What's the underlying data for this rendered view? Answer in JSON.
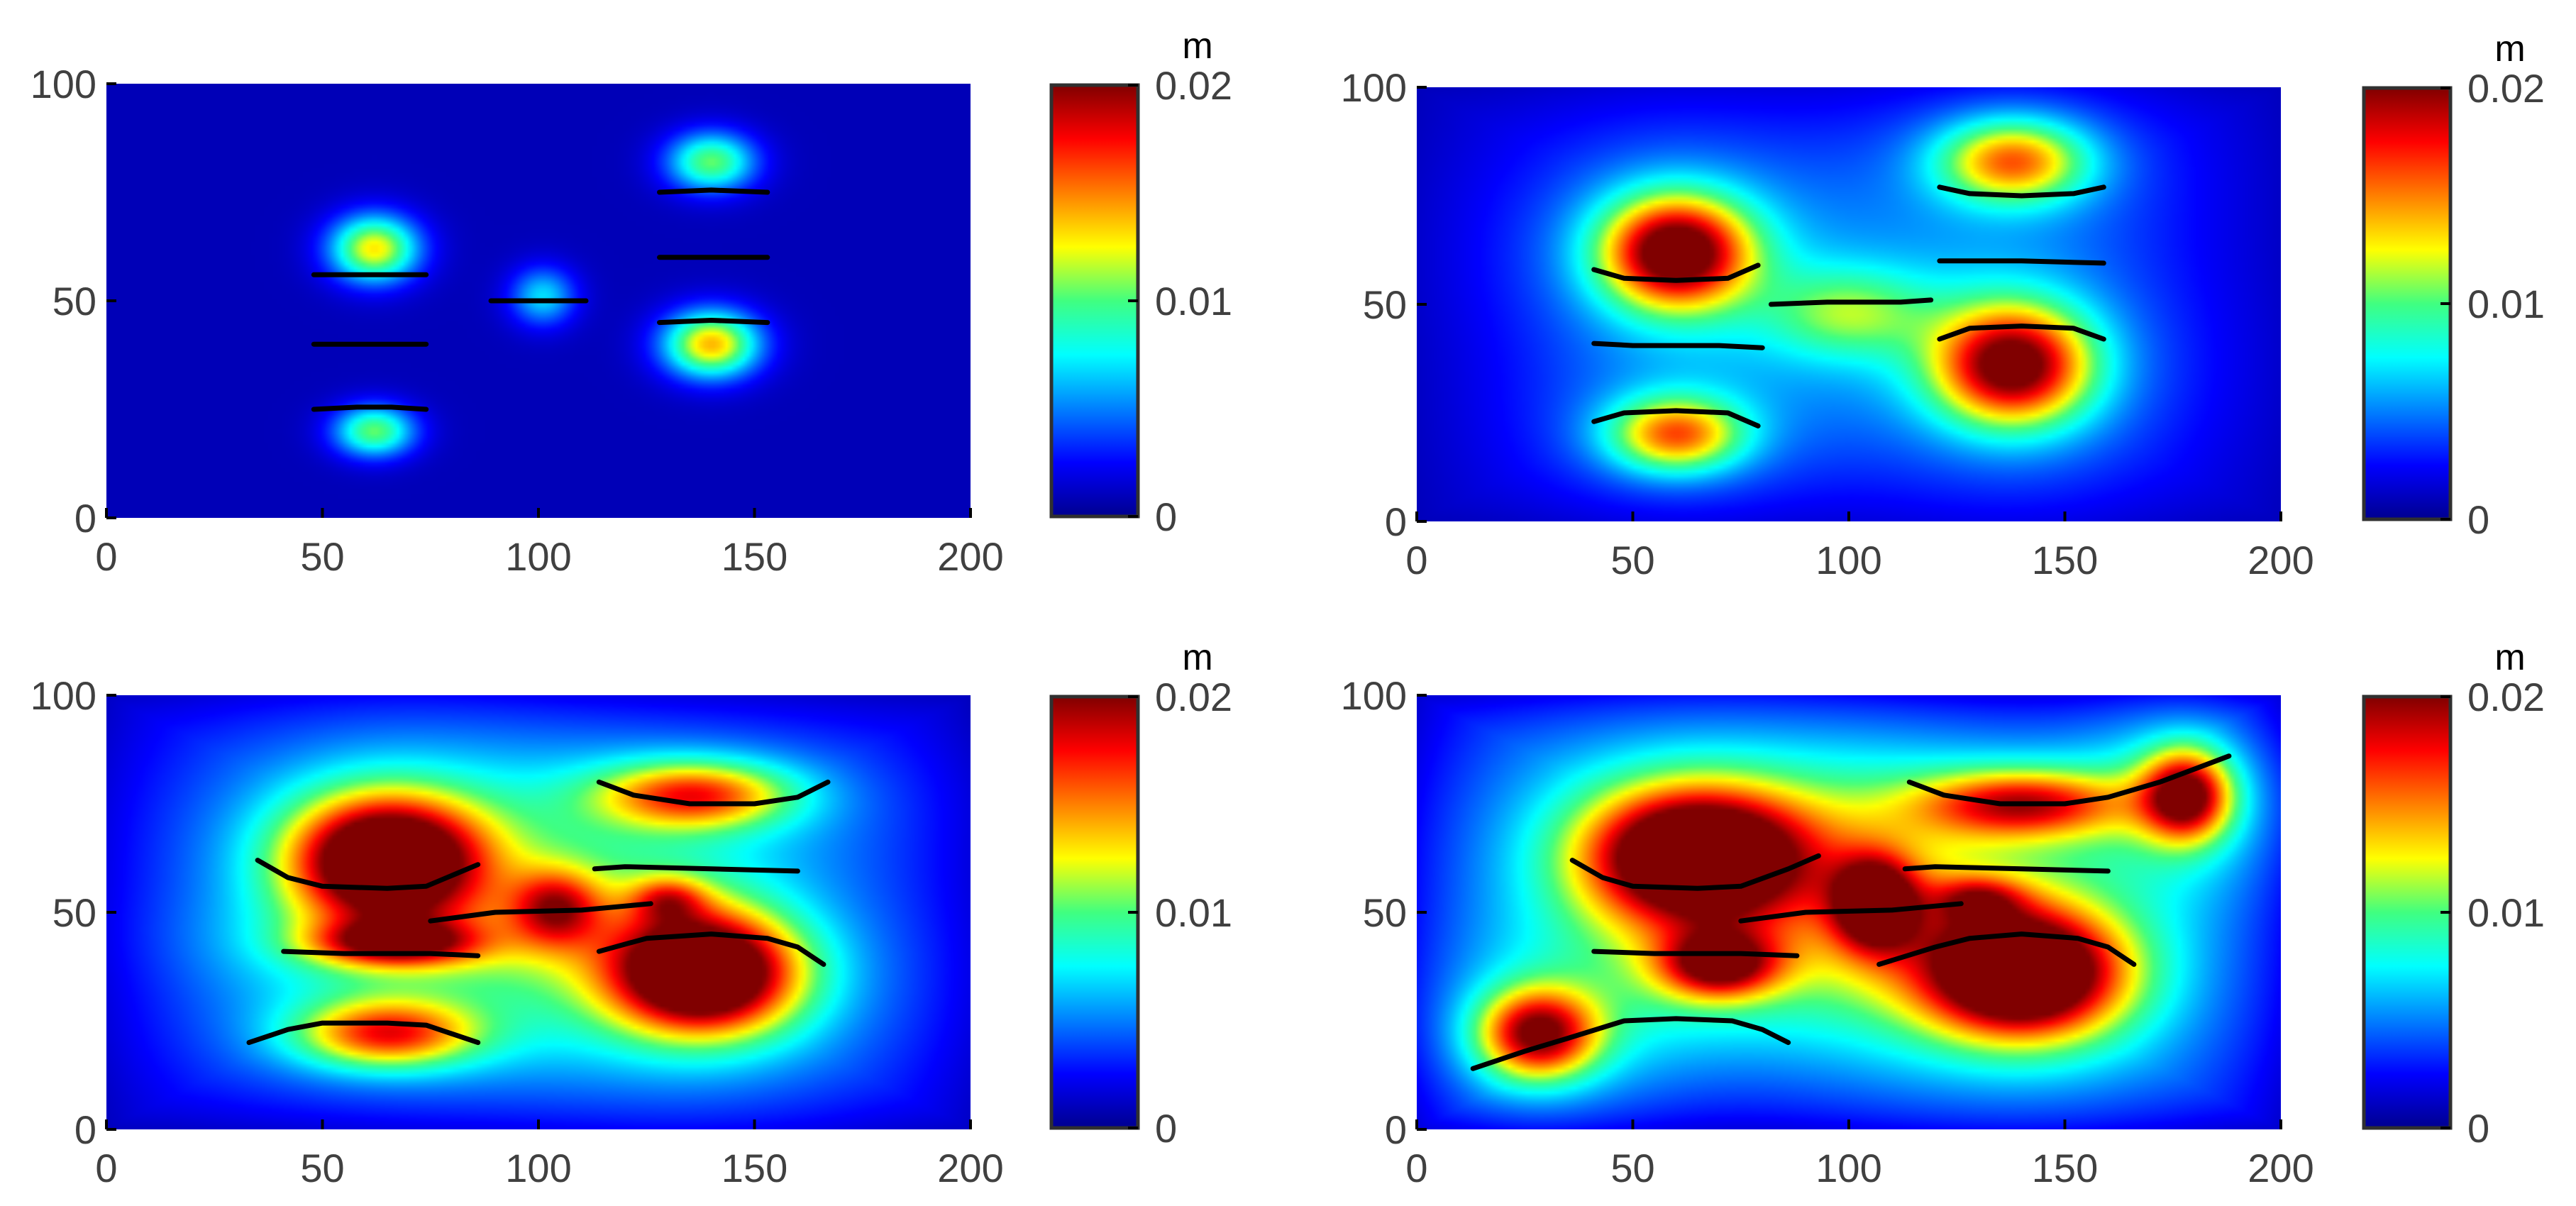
{
  "chart_data": [
    {
      "type": "heatmap",
      "panel": "top-left",
      "xlim": [
        0,
        200
      ],
      "ylim": [
        0,
        100
      ],
      "xticks": [
        "0",
        "50",
        "100",
        "150",
        "200"
      ],
      "yticks": [
        "0",
        "50",
        "100"
      ],
      "colorbar": {
        "unit": "m",
        "range": [
          0,
          0.02
        ],
        "ticks": [
          "0",
          "0.01",
          "0.02"
        ],
        "colormap": "jet"
      },
      "blobs": [
        {
          "x": 62,
          "y": 62,
          "rx": 12,
          "ry": 9,
          "v": 0.012
        },
        {
          "x": 62,
          "y": 20,
          "rx": 11,
          "ry": 7,
          "v": 0.0095
        },
        {
          "x": 101,
          "y": 51,
          "rx": 9,
          "ry": 8,
          "v": 0.006
        },
        {
          "x": 140,
          "y": 82,
          "rx": 12,
          "ry": 8,
          "v": 0.0095
        },
        {
          "x": 140,
          "y": 40,
          "rx": 13,
          "ry": 9,
          "v": 0.013
        }
      ],
      "fractures": [
        [
          [
            48,
            56
          ],
          [
            58,
            56
          ],
          [
            66,
            56
          ],
          [
            74,
            56
          ]
        ],
        [
          [
            48,
            40
          ],
          [
            74,
            40
          ]
        ],
        [
          [
            48,
            25
          ],
          [
            58,
            25.5
          ],
          [
            66,
            25.5
          ],
          [
            74,
            25
          ]
        ],
        [
          [
            89,
            50
          ],
          [
            111,
            50
          ]
        ],
        [
          [
            128,
            75
          ],
          [
            140,
            75.5
          ],
          [
            153,
            75
          ]
        ],
        [
          [
            128,
            60
          ],
          [
            153,
            60
          ]
        ],
        [
          [
            128,
            45
          ],
          [
            140,
            45.5
          ],
          [
            153,
            45
          ]
        ]
      ]
    },
    {
      "type": "heatmap",
      "panel": "top-right",
      "xlim": [
        0,
        200
      ],
      "ylim": [
        0,
        100
      ],
      "xticks": [
        "0",
        "50",
        "100",
        "150",
        "200"
      ],
      "yticks": [
        "0",
        "50",
        "100"
      ],
      "colorbar": {
        "unit": "m",
        "range": [
          0,
          0.02
        ],
        "ticks": [
          "0",
          "0.01",
          "0.02"
        ],
        "colormap": "jet"
      },
      "blobs": [
        {
          "x": 60,
          "y": 62,
          "rx": 20,
          "ry": 15,
          "v": 0.017
        },
        {
          "x": 60,
          "y": 20,
          "rx": 18,
          "ry": 10,
          "v": 0.011
        },
        {
          "x": 100,
          "y": 48,
          "rx": 22,
          "ry": 12,
          "v": 0.0055
        },
        {
          "x": 138,
          "y": 83,
          "rx": 20,
          "ry": 11,
          "v": 0.011
        },
        {
          "x": 138,
          "y": 36,
          "rx": 21,
          "ry": 16,
          "v": 0.016
        }
      ],
      "fractures": [
        [
          [
            41,
            58
          ],
          [
            48,
            56
          ],
          [
            60,
            55.5
          ],
          [
            72,
            56
          ],
          [
            79,
            59
          ]
        ],
        [
          [
            41,
            41
          ],
          [
            50,
            40.5
          ],
          [
            70,
            40.5
          ],
          [
            80,
            40
          ]
        ],
        [
          [
            41,
            23
          ],
          [
            48,
            25
          ],
          [
            60,
            25.5
          ],
          [
            72,
            25
          ],
          [
            79,
            22
          ]
        ],
        [
          [
            82,
            50
          ],
          [
            95,
            50.5
          ],
          [
            112,
            50.5
          ],
          [
            119,
            51
          ]
        ],
        [
          [
            121,
            77
          ],
          [
            128,
            75.5
          ],
          [
            140,
            75
          ],
          [
            152,
            75.5
          ],
          [
            159,
            77
          ]
        ],
        [
          [
            121,
            60
          ],
          [
            140,
            60
          ],
          [
            159,
            59.5
          ]
        ],
        [
          [
            121,
            42
          ],
          [
            128,
            44.5
          ],
          [
            140,
            45
          ],
          [
            152,
            44.5
          ],
          [
            159,
            42
          ]
        ]
      ]
    },
    {
      "type": "heatmap",
      "panel": "bottom-left",
      "xlim": [
        0,
        200
      ],
      "ylim": [
        0,
        100
      ],
      "xticks": [
        "0",
        "50",
        "100",
        "150",
        "200"
      ],
      "yticks": [
        "0",
        "50",
        "100"
      ],
      "colorbar": {
        "unit": "m",
        "range": [
          0,
          0.02
        ],
        "ticks": [
          "0",
          "0.01",
          "0.02"
        ],
        "colormap": "jet"
      },
      "blobs": [
        {
          "x": 65,
          "y": 62,
          "rx": 26,
          "ry": 17,
          "v": 0.02
        },
        {
          "x": 65,
          "y": 22,
          "rx": 24,
          "ry": 9,
          "v": 0.011
        },
        {
          "x": 67,
          "y": 43,
          "rx": 22,
          "ry": 6,
          "v": 0.011
        },
        {
          "x": 136,
          "y": 77,
          "rx": 26,
          "ry": 9,
          "v": 0.011
        },
        {
          "x": 138,
          "y": 36,
          "rx": 25,
          "ry": 16,
          "v": 0.02
        },
        {
          "x": 104,
          "y": 51,
          "rx": 12,
          "ry": 10,
          "v": 0.0085
        },
        {
          "x": 130,
          "y": 53,
          "rx": 10,
          "ry": 6,
          "v": 0.006
        }
      ],
      "fractures": [
        [
          [
            35,
            62
          ],
          [
            42,
            58
          ],
          [
            50,
            56
          ],
          [
            65,
            55.5
          ],
          [
            74,
            56
          ],
          [
            86,
            61
          ]
        ],
        [
          [
            41,
            41
          ],
          [
            55,
            40.5
          ],
          [
            75,
            40.5
          ],
          [
            86,
            40
          ]
        ],
        [
          [
            33,
            20
          ],
          [
            42,
            23
          ],
          [
            50,
            24.5
          ],
          [
            65,
            24.5
          ],
          [
            74,
            24
          ],
          [
            86,
            20
          ]
        ],
        [
          [
            75,
            48
          ],
          [
            90,
            50
          ],
          [
            110,
            50.5
          ],
          [
            126,
            52
          ]
        ],
        [
          [
            114,
            80
          ],
          [
            122,
            77
          ],
          [
            135,
            75
          ],
          [
            150,
            75
          ],
          [
            160,
            76.5
          ],
          [
            167,
            80
          ]
        ],
        [
          [
            113,
            60
          ],
          [
            120,
            60.5
          ],
          [
            140,
            60
          ],
          [
            160,
            59.5
          ]
        ],
        [
          [
            114,
            41
          ],
          [
            125,
            44
          ],
          [
            140,
            45
          ],
          [
            153,
            44
          ],
          [
            160,
            42
          ],
          [
            166,
            38
          ]
        ]
      ]
    },
    {
      "type": "heatmap",
      "panel": "bottom-right",
      "xlim": [
        0,
        200
      ],
      "ylim": [
        0,
        100
      ],
      "xticks": [
        "0",
        "50",
        "100",
        "150",
        "200"
      ],
      "yticks": [
        "0",
        "50",
        "100"
      ],
      "colorbar": {
        "unit": "m",
        "range": [
          0,
          0.02
        ],
        "ticks": [
          "0",
          "0.01",
          "0.02"
        ],
        "colormap": "jet"
      },
      "blobs": [
        {
          "x": 65,
          "y": 63,
          "rx": 30,
          "ry": 18,
          "v": 0.02
        },
        {
          "x": 28,
          "y": 22,
          "rx": 16,
          "ry": 12,
          "v": 0.014
        },
        {
          "x": 70,
          "y": 38,
          "rx": 16,
          "ry": 9,
          "v": 0.012
        },
        {
          "x": 106,
          "y": 52,
          "rx": 11,
          "ry": 12,
          "v": 0.013
        },
        {
          "x": 140,
          "y": 36,
          "rx": 27,
          "ry": 17,
          "v": 0.02
        },
        {
          "x": 140,
          "y": 75,
          "rx": 28,
          "ry": 9,
          "v": 0.011
        },
        {
          "x": 178,
          "y": 77,
          "rx": 12,
          "ry": 12,
          "v": 0.014
        },
        {
          "x": 130,
          "y": 53,
          "rx": 12,
          "ry": 6,
          "v": 0.006
        }
      ],
      "fractures": [
        [
          [
            36,
            62
          ],
          [
            43,
            58
          ],
          [
            50,
            56
          ],
          [
            65,
            55.5
          ],
          [
            75,
            56
          ],
          [
            86,
            60
          ],
          [
            93,
            63
          ]
        ],
        [
          [
            41,
            41
          ],
          [
            55,
            40.5
          ],
          [
            75,
            40.5
          ],
          [
            88,
            40
          ]
        ],
        [
          [
            13,
            14
          ],
          [
            25,
            18
          ],
          [
            35,
            21
          ],
          [
            48,
            25
          ],
          [
            60,
            25.5
          ],
          [
            73,
            25
          ],
          [
            80,
            23
          ],
          [
            86,
            20
          ]
        ],
        [
          [
            75,
            48
          ],
          [
            90,
            50
          ],
          [
            110,
            50.5
          ],
          [
            126,
            52
          ]
        ],
        [
          [
            114,
            80
          ],
          [
            122,
            77
          ],
          [
            135,
            75
          ],
          [
            150,
            75
          ],
          [
            160,
            76.5
          ],
          [
            172,
            80
          ],
          [
            188,
            86
          ]
        ],
        [
          [
            113,
            60
          ],
          [
            120,
            60.5
          ],
          [
            140,
            60
          ],
          [
            160,
            59.5
          ]
        ],
        [
          [
            107,
            38
          ],
          [
            120,
            42
          ],
          [
            128,
            44
          ],
          [
            140,
            45
          ],
          [
            153,
            44
          ],
          [
            160,
            42
          ],
          [
            166,
            38
          ]
        ]
      ]
    }
  ]
}
